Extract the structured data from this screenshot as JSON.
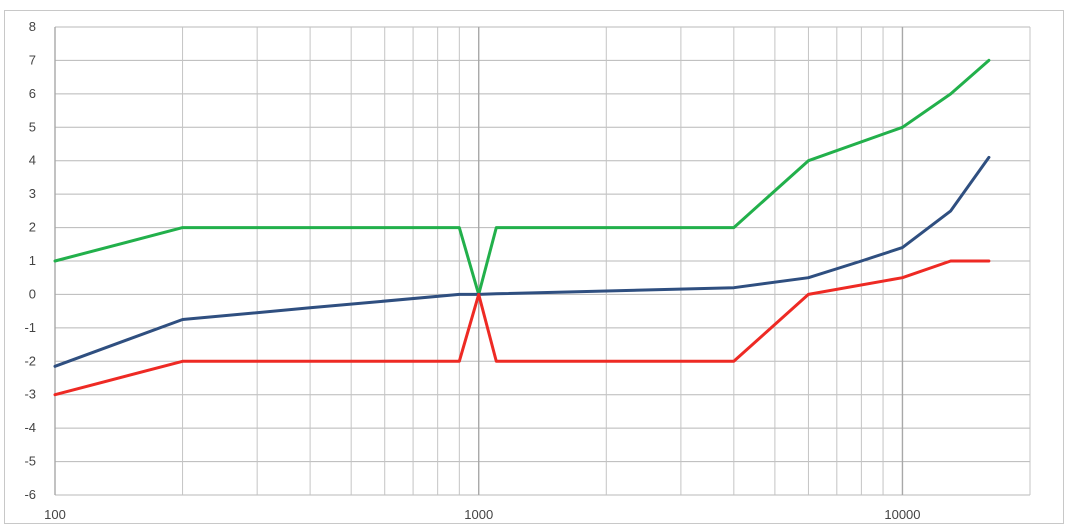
{
  "chart_data": {
    "type": "line",
    "title": "",
    "xlabel": "",
    "ylabel": "",
    "x_scale": "log",
    "xlim": [
      100,
      20000
    ],
    "ylim": [
      -6,
      8
    ],
    "grid": true,
    "legend": "none",
    "x_ticks": [
      {
        "value": 100,
        "label": "100"
      },
      {
        "value": 1000,
        "label": "1000"
      },
      {
        "value": 10000,
        "label": "10000"
      }
    ],
    "y_ticks": [
      {
        "value": 8,
        "label": "8"
      },
      {
        "value": 7,
        "label": "7"
      },
      {
        "value": 6,
        "label": "6"
      },
      {
        "value": 5,
        "label": "5"
      },
      {
        "value": 4,
        "label": "4"
      },
      {
        "value": 3,
        "label": "3"
      },
      {
        "value": 2,
        "label": "2"
      },
      {
        "value": 1,
        "label": "1"
      },
      {
        "value": 0,
        "label": "0"
      },
      {
        "value": -1,
        "label": "-1"
      },
      {
        "value": -2,
        "label": "-2"
      },
      {
        "value": -3,
        "label": "-3"
      },
      {
        "value": -4,
        "label": "-4"
      },
      {
        "value": -5,
        "label": "-5"
      },
      {
        "value": -6,
        "label": "-6"
      }
    ],
    "series": [
      {
        "color": "#22b04b",
        "points": [
          [
            100,
            1
          ],
          [
            200,
            2
          ],
          [
            900,
            2
          ],
          [
            1000,
            0
          ],
          [
            1100,
            2
          ],
          [
            4000,
            2
          ],
          [
            6000,
            4
          ],
          [
            10000,
            5
          ],
          [
            13000,
            6
          ],
          [
            16000,
            7
          ]
        ]
      },
      {
        "color": "#2f4f80",
        "points": [
          [
            100,
            -2.15
          ],
          [
            200,
            -0.75
          ],
          [
            400,
            -0.4
          ],
          [
            900,
            0
          ],
          [
            1000,
            0
          ],
          [
            1100,
            0.02
          ],
          [
            4000,
            0.2
          ],
          [
            6000,
            0.5
          ],
          [
            8000,
            1
          ],
          [
            10000,
            1.4
          ],
          [
            13000,
            2.5
          ],
          [
            16000,
            4.1
          ]
        ]
      },
      {
        "color": "#ee2a24",
        "points": [
          [
            100,
            -3
          ],
          [
            200,
            -2
          ],
          [
            900,
            -2
          ],
          [
            1000,
            0
          ],
          [
            1100,
            -2
          ],
          [
            4000,
            -2
          ],
          [
            6000,
            0
          ],
          [
            10000,
            0.5
          ],
          [
            13000,
            1
          ],
          [
            16000,
            1
          ]
        ]
      }
    ]
  }
}
